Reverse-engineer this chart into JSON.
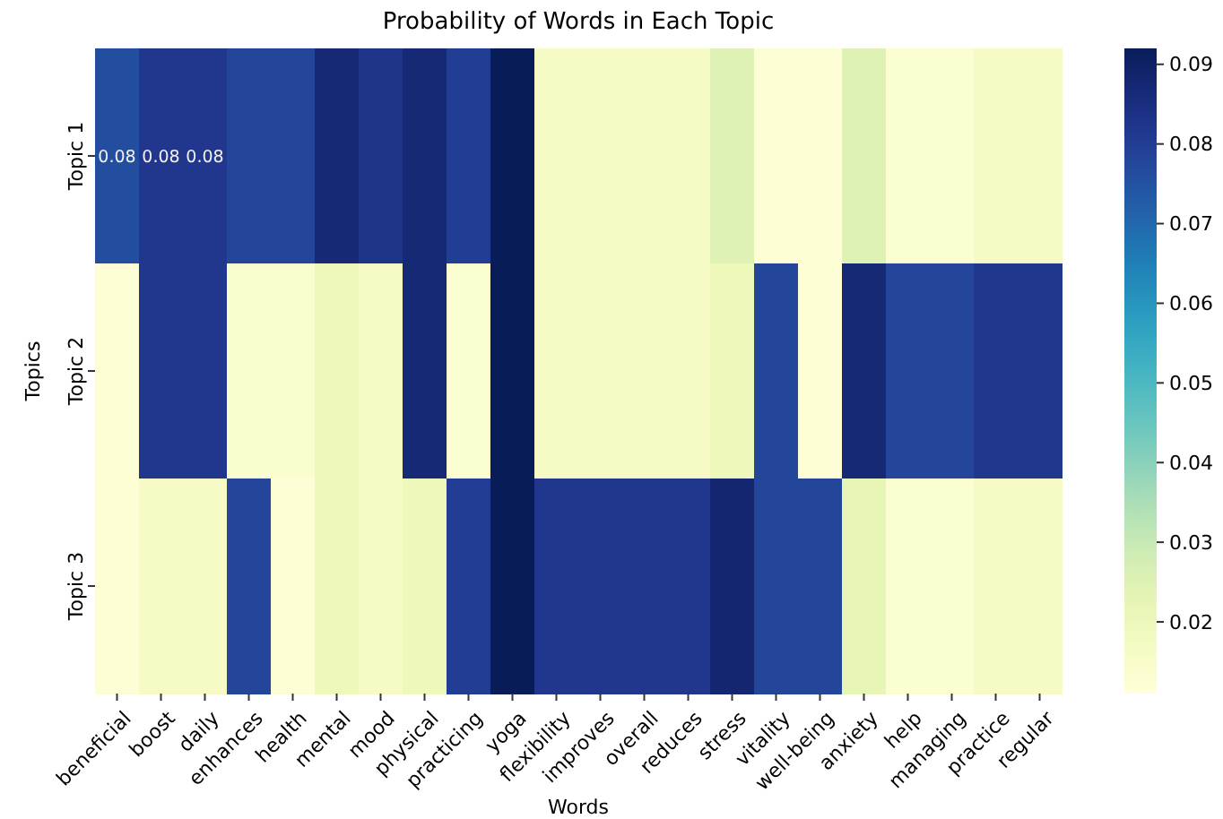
{
  "chart_data": {
    "type": "heatmap",
    "title": "Probability of Words in Each Topic",
    "xlabel": "Words",
    "ylabel": "Topics",
    "categories": [
      "beneficial",
      "boost",
      "daily",
      "enhances",
      "health",
      "mental",
      "mood",
      "physical",
      "practicing",
      "yoga",
      "flexibility",
      "improves",
      "overall",
      "reduces",
      "stress",
      "vitality",
      "well-being",
      "anxiety",
      "help",
      "managing",
      "practice",
      "regular"
    ],
    "y_categories": [
      "Topic 1",
      "Topic 2",
      "Topic 3"
    ],
    "cells": [
      [
        0.076,
        0.082,
        0.082,
        0.078,
        0.078,
        0.087,
        0.083,
        0.087,
        0.08,
        0.092,
        0.016,
        0.016,
        0.016,
        0.016,
        0.025,
        0.012,
        0.012,
        0.025,
        0.013,
        0.013,
        0.016,
        0.016
      ],
      [
        0.012,
        0.082,
        0.082,
        0.014,
        0.014,
        0.02,
        0.016,
        0.087,
        0.013,
        0.092,
        0.016,
        0.016,
        0.016,
        0.016,
        0.02,
        0.078,
        0.012,
        0.087,
        0.078,
        0.078,
        0.082,
        0.082
      ],
      [
        0.012,
        0.016,
        0.016,
        0.078,
        0.012,
        0.02,
        0.016,
        0.02,
        0.08,
        0.092,
        0.082,
        0.082,
        0.082,
        0.082,
        0.088,
        0.078,
        0.078,
        0.022,
        0.013,
        0.013,
        0.016,
        0.016
      ]
    ],
    "cell_labels": [
      [
        "0.08",
        "0.08",
        "0.08",
        null,
        null,
        null,
        null,
        null,
        null,
        null,
        null,
        null,
        null,
        null,
        null,
        null,
        null,
        null,
        null,
        null,
        null,
        null
      ],
      [
        null,
        null,
        null,
        null,
        null,
        null,
        null,
        null,
        null,
        null,
        null,
        null,
        null,
        null,
        null,
        null,
        null,
        null,
        null,
        null,
        null,
        null
      ],
      [
        null,
        null,
        null,
        null,
        null,
        null,
        null,
        null,
        null,
        null,
        null,
        null,
        null,
        null,
        null,
        null,
        null,
        null,
        null,
        null,
        null,
        null
      ]
    ],
    "clim": [
      0.011,
      0.092
    ],
    "cticks": [
      0.02,
      0.03,
      0.04,
      0.05,
      0.06,
      0.07,
      0.08,
      0.09
    ]
  }
}
